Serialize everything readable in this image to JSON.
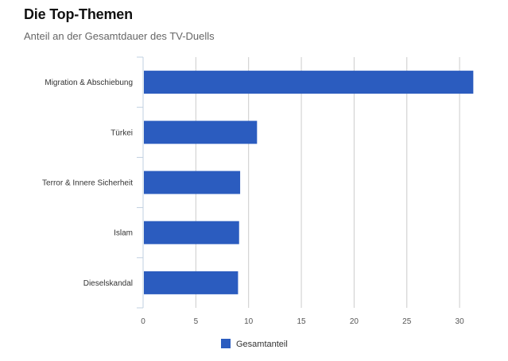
{
  "header": {
    "title": "Die Top-Themen",
    "subtitle": "Anteil an der Gesamtdauer des TV-Duells"
  },
  "chart_data": {
    "type": "bar",
    "orientation": "horizontal",
    "title": "Die Top-Themen",
    "subtitle": "Anteil an der Gesamtdauer des TV-Duells",
    "categories": [
      "Migration & Abschiebung",
      "Türkei",
      "Terror & Innere Sicherheit",
      "Islam",
      "Dieselskandal"
    ],
    "series": [
      {
        "name": "Gesamtanteil",
        "values": [
          31.3,
          10.8,
          9.2,
          9.1,
          9.0
        ],
        "color": "#2b5cbf"
      }
    ],
    "xlim": [
      0,
      31.5
    ],
    "xticks": [
      0,
      5,
      10,
      15,
      20,
      25,
      30
    ],
    "grid": true,
    "legend": "bottom-center"
  }
}
